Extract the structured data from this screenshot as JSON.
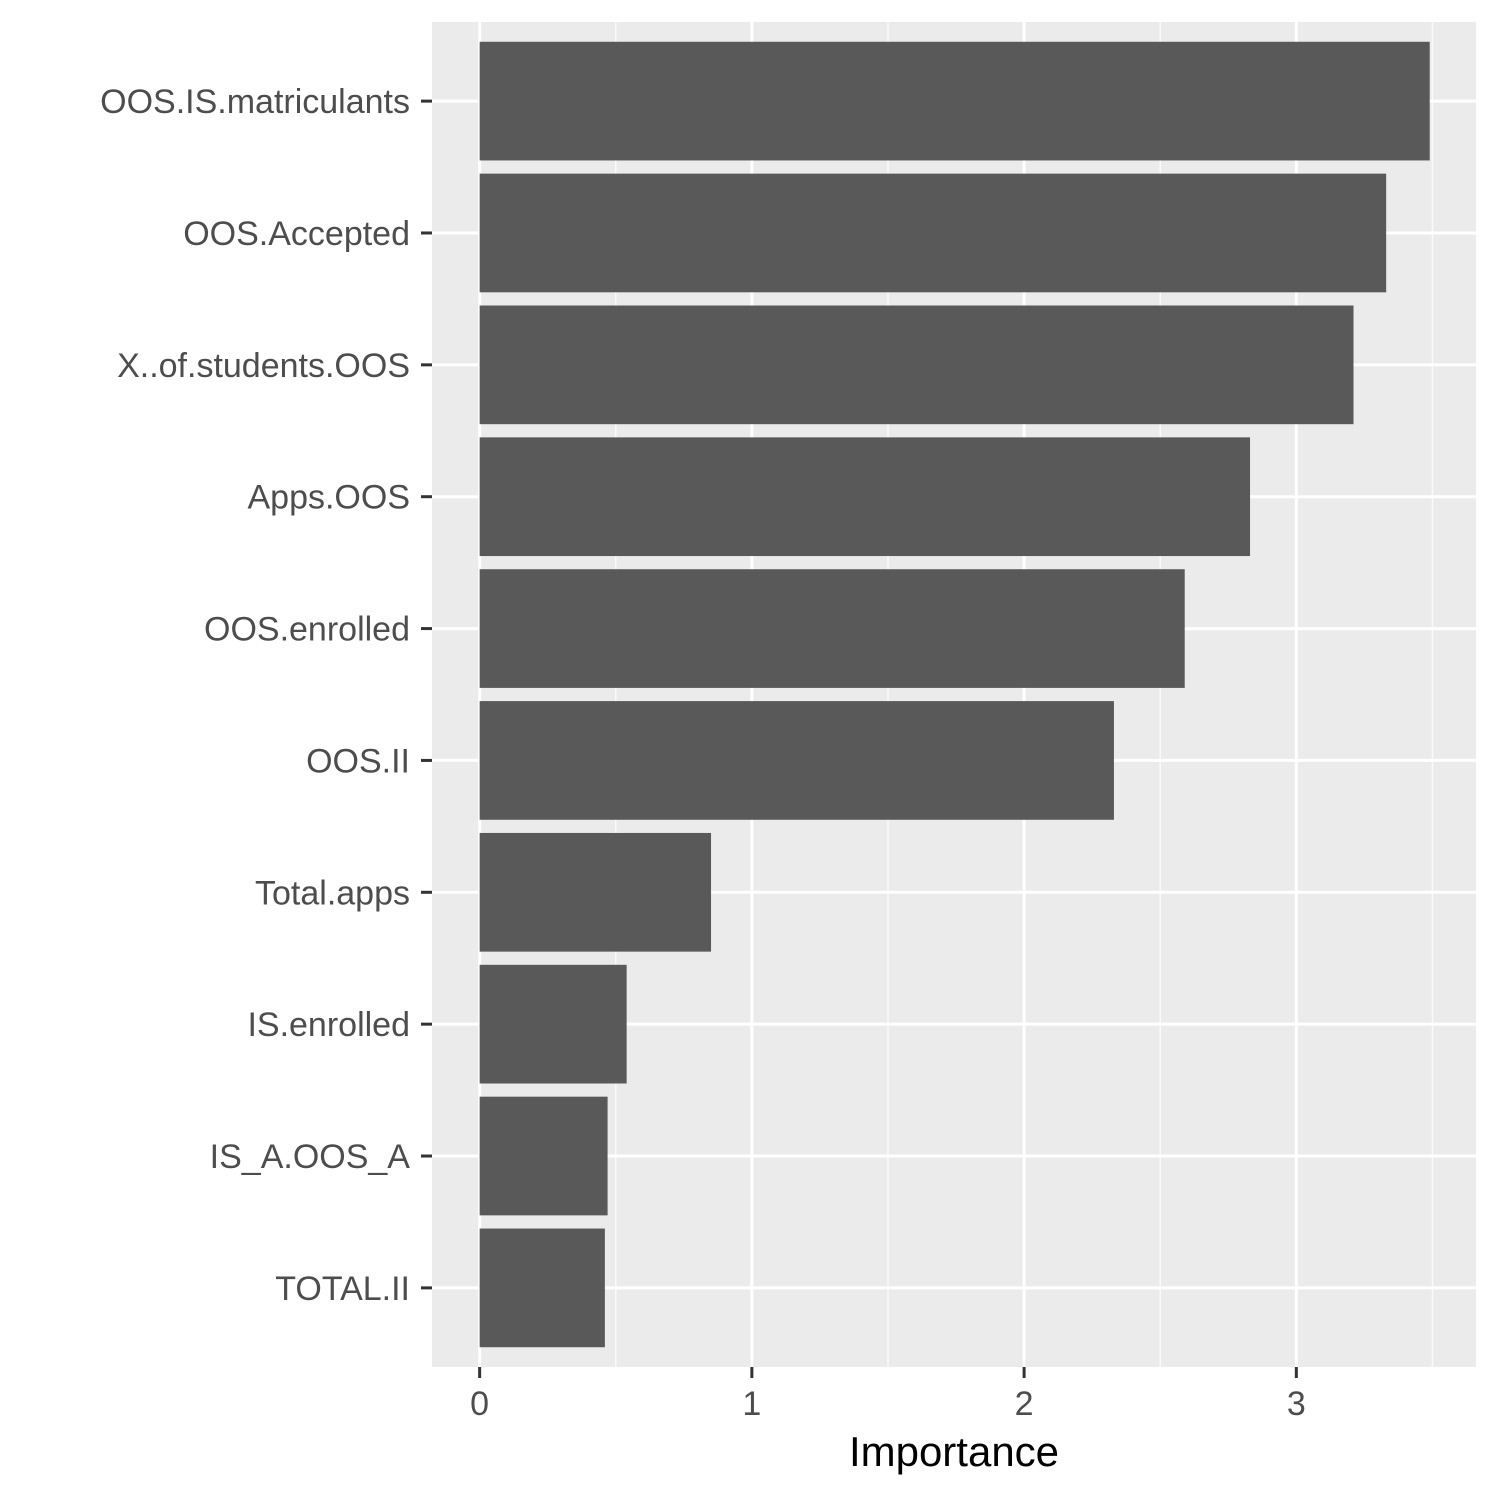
{
  "chart_data": {
    "type": "bar",
    "orientation": "horizontal",
    "title": "",
    "xlabel": "Importance",
    "ylabel": "",
    "categories": [
      "OOS.IS.matriculants",
      "OOS.Accepted",
      "X..of.students.OOS",
      "Apps.OOS",
      "OOS.enrolled",
      "OOS.II",
      "Total.apps",
      "IS.enrolled",
      "IS_A.OOS_A",
      "TOTAL.II"
    ],
    "values": [
      3.49,
      3.33,
      3.21,
      2.83,
      2.59,
      2.33,
      0.85,
      0.54,
      0.47,
      0.46
    ],
    "xlim": [
      -0.175,
      3.66
    ],
    "x_ticks": [
      0,
      1,
      2,
      3
    ],
    "x_tick_labels": [
      "0",
      "1",
      "2",
      "3"
    ],
    "grid": true,
    "legend": "none",
    "colors": {
      "bar": "#595959",
      "panel": "#ebebeb",
      "grid_major": "#ffffff",
      "grid_minor": "#f5f5f5",
      "tick": "#333333"
    }
  }
}
